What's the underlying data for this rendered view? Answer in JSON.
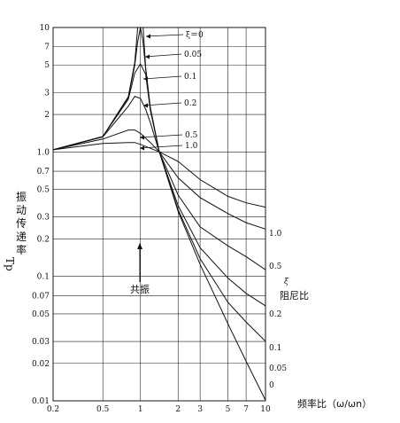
{
  "chart_data": {
    "type": "line",
    "title": "",
    "xlabel": "频率比（ω/ωn）",
    "ylabel": "振动传递率",
    "ylabel_symbol": "Tp",
    "xscale": "log",
    "yscale": "log",
    "xlim": [
      0.2,
      10
    ],
    "ylim": [
      0.01,
      10
    ],
    "grid": true,
    "x_ticks": [
      "0.2",
      "0.5",
      "1",
      "2",
      "3",
      "5",
      "7",
      "10"
    ],
    "y_ticks": [
      "0.01",
      "0.02",
      "0.03",
      "0.05",
      "0.07",
      "0.1",
      "0.2",
      "0.3",
      "0.5",
      "0.7",
      "1.0",
      "2",
      "3",
      "5",
      "7",
      "10"
    ],
    "legend_title": "ξ",
    "legend_subtitle": "阻尼比",
    "peak_labels": [
      "ξ＝0",
      "0.05",
      "0.1",
      "0.2",
      "0.5",
      "1.0"
    ],
    "end_labels": [
      "1.0",
      "0.5",
      "0.2",
      "0.1",
      "0.05",
      "0"
    ],
    "annotation": "共振",
    "series": [
      {
        "damping": 0,
        "x": [
          0.2,
          0.5,
          0.8,
          0.9,
          0.95,
          0.97,
          1.0,
          1.03,
          1.05,
          1.1,
          1.2,
          1.414,
          2,
          3,
          5,
          7,
          10
        ],
        "y": [
          1.04,
          1.33,
          2.78,
          5.26,
          10,
          10,
          10,
          10,
          10,
          4.76,
          2.27,
          1.0,
          0.333,
          0.125,
          0.0417,
          0.0208,
          0.0101
        ]
      },
      {
        "damping": 0.05,
        "x": [
          0.2,
          0.5,
          0.8,
          0.9,
          0.95,
          1.0,
          1.05,
          1.1,
          1.2,
          1.414,
          2,
          3,
          5,
          7,
          10
        ],
        "y": [
          1.04,
          1.33,
          2.74,
          4.98,
          7.7,
          10,
          7.6,
          4.59,
          2.23,
          1.0,
          0.343,
          0.139,
          0.062,
          0.043,
          0.0301
        ]
      },
      {
        "damping": 0.1,
        "x": [
          0.2,
          0.5,
          0.8,
          0.9,
          1.0,
          1.1,
          1.2,
          1.414,
          2,
          3,
          5,
          7,
          10
        ],
        "y": [
          1.04,
          1.33,
          2.65,
          4.3,
          5.1,
          4.2,
          2.16,
          1.0,
          0.37,
          0.17,
          0.097,
          0.073,
          0.058
        ]
      },
      {
        "damping": 0.2,
        "x": [
          0.2,
          0.5,
          0.8,
          0.9,
          1.0,
          1.1,
          1.2,
          1.414,
          2,
          3,
          5,
          7,
          10
        ],
        "y": [
          1.04,
          1.32,
          2.33,
          2.8,
          2.69,
          2.2,
          1.72,
          1.0,
          0.45,
          0.25,
          0.176,
          0.144,
          0.113
        ]
      },
      {
        "damping": 0.5,
        "x": [
          0.2,
          0.5,
          0.8,
          0.9,
          1.0,
          1.2,
          1.414,
          2,
          3,
          5,
          7,
          10
        ],
        "y": [
          1.04,
          1.27,
          1.5,
          1.5,
          1.41,
          1.19,
          1.0,
          0.62,
          0.43,
          0.32,
          0.27,
          0.24
        ]
      },
      {
        "damping": 1.0,
        "x": [
          0.2,
          0.5,
          0.8,
          0.9,
          1.0,
          1.2,
          1.414,
          2,
          3,
          5,
          7,
          10
        ],
        "y": [
          1.04,
          1.17,
          1.19,
          1.19,
          1.15,
          1.07,
          1.0,
          0.84,
          0.6,
          0.44,
          0.39,
          0.36
        ]
      }
    ]
  }
}
